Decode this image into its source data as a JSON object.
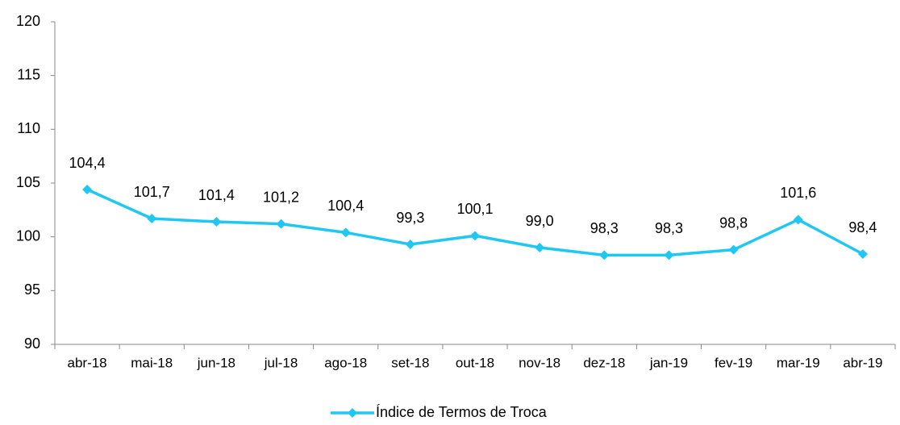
{
  "chart_data": {
    "type": "line",
    "categories": [
      "abr-18",
      "mai-18",
      "jun-18",
      "jul-18",
      "ago-18",
      "set-18",
      "out-18",
      "nov-18",
      "dez-18",
      "jan-19",
      "fev-19",
      "mar-19",
      "abr-19"
    ],
    "series": [
      {
        "name": "Índice de Termos de Troca",
        "color": "#1fc7f3",
        "values": [
          104.4,
          101.7,
          101.4,
          101.2,
          100.4,
          99.3,
          100.1,
          99.0,
          98.3,
          98.3,
          98.8,
          101.6,
          98.4
        ],
        "value_labels": [
          "104,4",
          "101,7",
          "101,4",
          "101,2",
          "100,4",
          "99,3",
          "100,1",
          "99,0",
          "98,3",
          "98,3",
          "98,8",
          "101,6",
          "98,4"
        ]
      }
    ],
    "ylim": [
      90,
      120
    ],
    "yticks": [
      90,
      95,
      100,
      105,
      110,
      115,
      120
    ],
    "grid": false,
    "legend": "bottom"
  }
}
